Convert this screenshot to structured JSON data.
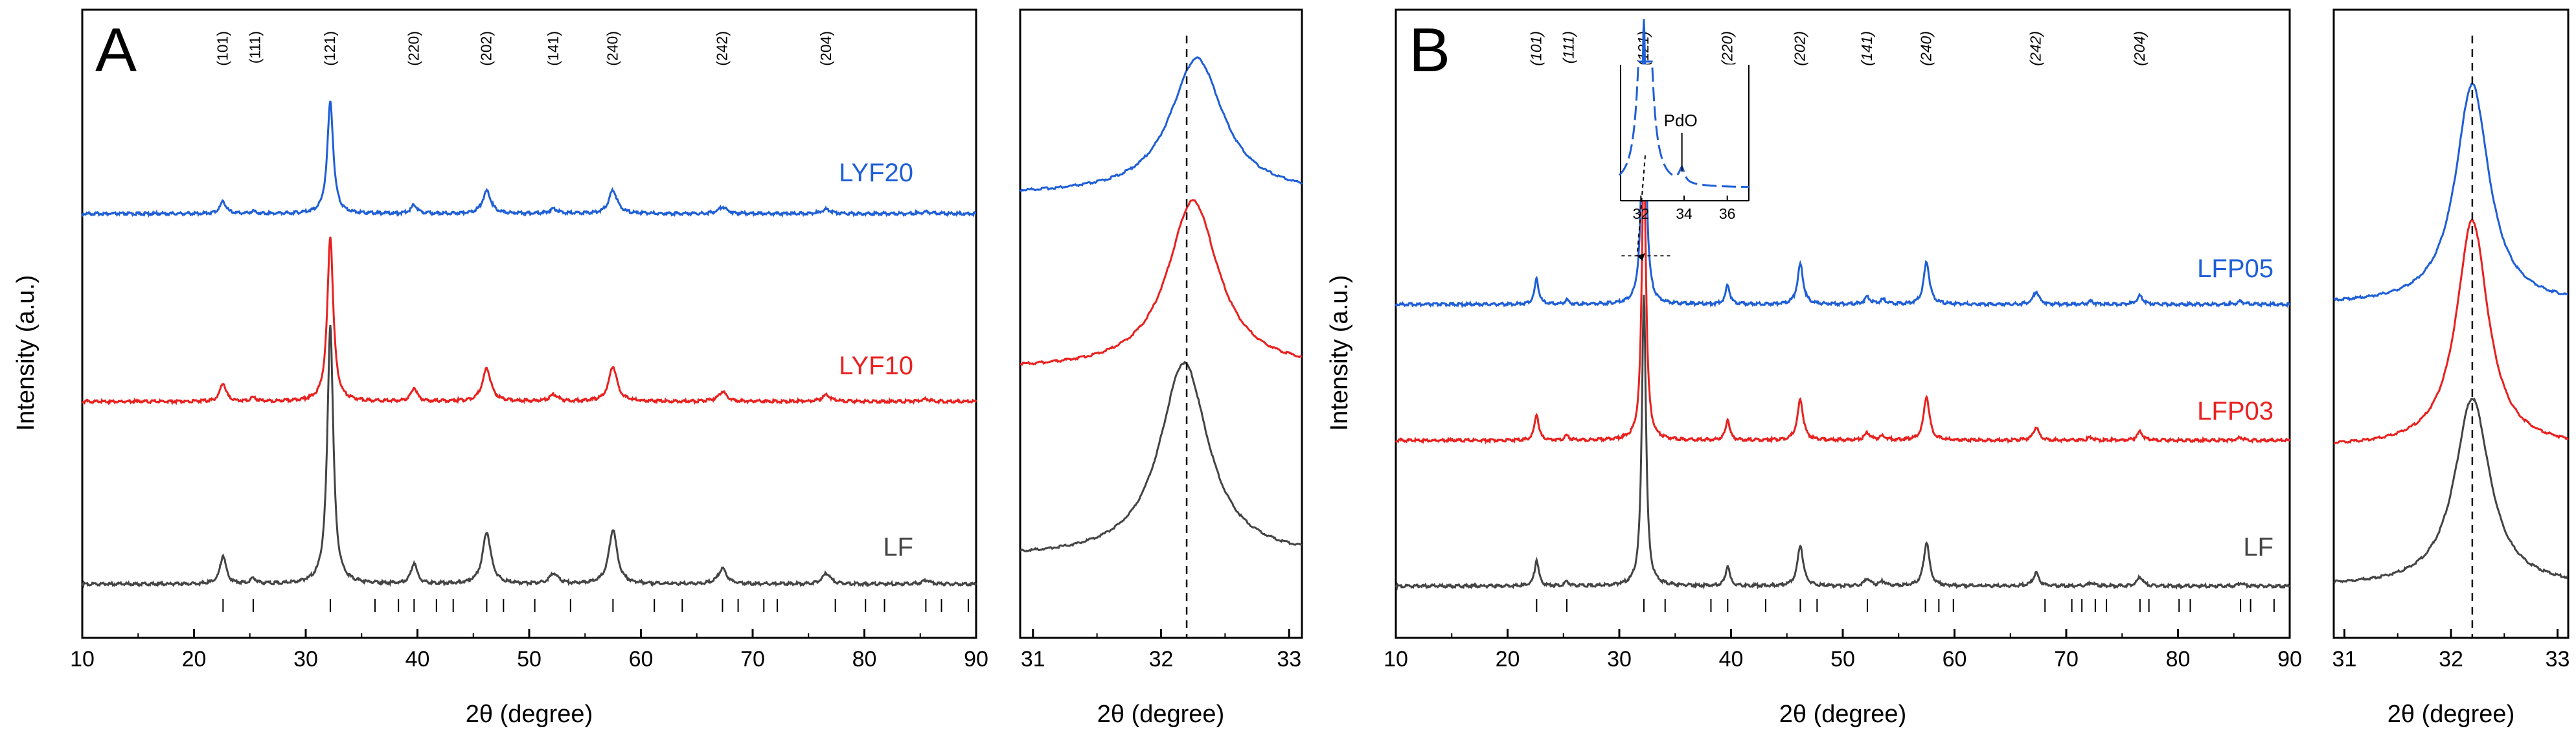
{
  "colors": {
    "blue": "#1f5fd6",
    "red": "#e8211f",
    "black": "#444444",
    "axis": "#000000"
  },
  "ylabel": "Intensity (a.u.)",
  "xlabel": "2θ (degree)",
  "chart_data": [
    {
      "panel": "A",
      "type": "line",
      "title": "A",
      "xlabel": "2θ (degree)",
      "ylabel": "Intensity (a.u.)",
      "xlim": [
        10,
        90
      ],
      "xticks": [
        "10",
        "20",
        "30",
        "40",
        "50",
        "60",
        "70",
        "80",
        "90"
      ],
      "reflections": [
        {
          "label": "(101)",
          "x": 22.6
        },
        {
          "label": "(111)",
          "x": 25.5
        },
        {
          "label": "(121)",
          "x": 32.2
        },
        {
          "label": "(220)",
          "x": 39.7
        },
        {
          "label": "(202)",
          "x": 46.2
        },
        {
          "label": "(141)",
          "x": 52.2
        },
        {
          "label": "(240)",
          "x": 57.5
        },
        {
          "label": "(242)",
          "x": 67.3
        },
        {
          "label": "(204)",
          "x": 76.6
        }
      ],
      "reference_ticks": [
        22.6,
        25.3,
        32.2,
        36.2,
        38.3,
        39.7,
        41.7,
        43.2,
        46.2,
        47.7,
        50.5,
        53.7,
        57.5,
        61.2,
        63.7,
        67.3,
        68.7,
        71.0,
        72.2,
        77.4,
        80.1,
        81.8,
        85.5,
        86.9,
        89.3
      ],
      "peaks": [
        {
          "x": 22.6,
          "h": 0.11
        },
        {
          "x": 25.3,
          "h": 0.02
        },
        {
          "x": 32.2,
          "h": 1.0
        },
        {
          "x": 39.7,
          "h": 0.08
        },
        {
          "x": 46.2,
          "h": 0.2
        },
        {
          "x": 52.2,
          "h": 0.04
        },
        {
          "x": 57.5,
          "h": 0.21
        },
        {
          "x": 67.3,
          "h": 0.06
        },
        {
          "x": 76.6,
          "h": 0.04
        },
        {
          "x": 85.5,
          "h": 0.015
        }
      ],
      "series": [
        {
          "name": "LYF20",
          "color": "#1f5fd6",
          "peak_scale": 0.68
        },
        {
          "name": "LYF10",
          "color": "#e8211f",
          "peak_scale": 1.0
        },
        {
          "name": "LF",
          "color": "#444444",
          "peak_scale": 1.0
        }
      ],
      "zoom": {
        "xlim": [
          30.9,
          33.1
        ],
        "xticks": [
          "31",
          "32",
          "33"
        ],
        "reference_line": 32.2,
        "xlabel": "2θ (degree)",
        "series": [
          {
            "name": "LYF20",
            "center": 32.28,
            "width": 0.25,
            "color": "#1f5fd6"
          },
          {
            "name": "LYF10",
            "center": 32.25,
            "width": 0.24,
            "color": "#e8211f"
          },
          {
            "name": "LF",
            "center": 32.18,
            "width": 0.23,
            "color": "#444444"
          }
        ]
      }
    },
    {
      "panel": "B",
      "type": "line",
      "title": "B",
      "xlabel": "2θ (degree)",
      "ylabel": "Intensity (a.u.)",
      "xlim": [
        10,
        90
      ],
      "xticks": [
        "10",
        "20",
        "30",
        "40",
        "50",
        "60",
        "70",
        "80",
        "90"
      ],
      "reflections": [
        {
          "label": "(101)",
          "x": 22.6
        },
        {
          "label": "(111)",
          "x": 25.5
        },
        {
          "label": "(121)",
          "x": 32.2
        },
        {
          "label": "(220)",
          "x": 39.7
        },
        {
          "label": "(202)",
          "x": 46.2
        },
        {
          "label": "(141)",
          "x": 52.2
        },
        {
          "label": "(240)",
          "x": 57.5
        },
        {
          "label": "(242)",
          "x": 67.3
        },
        {
          "label": "(204)",
          "x": 76.6
        }
      ],
      "reference_ticks": [
        22.6,
        25.3,
        32.2,
        34.1,
        38.2,
        39.7,
        43.1,
        46.2,
        47.7,
        52.2,
        57.4,
        58.6,
        59.9,
        68.1,
        70.5,
        71.4,
        72.6,
        73.6,
        76.6,
        77.4,
        80.1,
        81.1,
        85.6,
        86.5,
        88.6
      ],
      "peaks": [
        {
          "x": 22.6,
          "h": 0.09
        },
        {
          "x": 25.3,
          "h": 0.015
        },
        {
          "x": 32.2,
          "h": 1.0
        },
        {
          "x": 39.7,
          "h": 0.07
        },
        {
          "x": 46.2,
          "h": 0.14
        },
        {
          "x": 52.2,
          "h": 0.025
        },
        {
          "x": 53.6,
          "h": 0.015
        },
        {
          "x": 57.5,
          "h": 0.15
        },
        {
          "x": 67.3,
          "h": 0.045
        },
        {
          "x": 72.2,
          "h": 0.01
        },
        {
          "x": 76.6,
          "h": 0.03
        },
        {
          "x": 85.6,
          "h": 0.01
        }
      ],
      "series": [
        {
          "name": "LFP05",
          "color": "#1f5fd6",
          "peak_scale": 1.0
        },
        {
          "name": "LFP03",
          "color": "#e8211f",
          "peak_scale": 1.0
        },
        {
          "name": "LF",
          "color": "#444444",
          "peak_scale": 1.0
        }
      ],
      "inset": {
        "label": "PdO",
        "xticks": [
          "32",
          "34",
          "36"
        ],
        "peak_x": 33.9
      },
      "zoom": {
        "xlim": [
          30.9,
          33.1
        ],
        "xticks": [
          "31",
          "32",
          "33"
        ],
        "reference_line": 32.2,
        "xlabel": "2θ (degree)",
        "series": [
          {
            "name": "LFP05",
            "center": 32.2,
            "width": 0.19,
            "color": "#1f5fd6"
          },
          {
            "name": "LFP03",
            "center": 32.2,
            "width": 0.18,
            "color": "#e8211f"
          },
          {
            "name": "LF",
            "center": 32.2,
            "width": 0.2,
            "color": "#444444"
          }
        ]
      }
    }
  ]
}
